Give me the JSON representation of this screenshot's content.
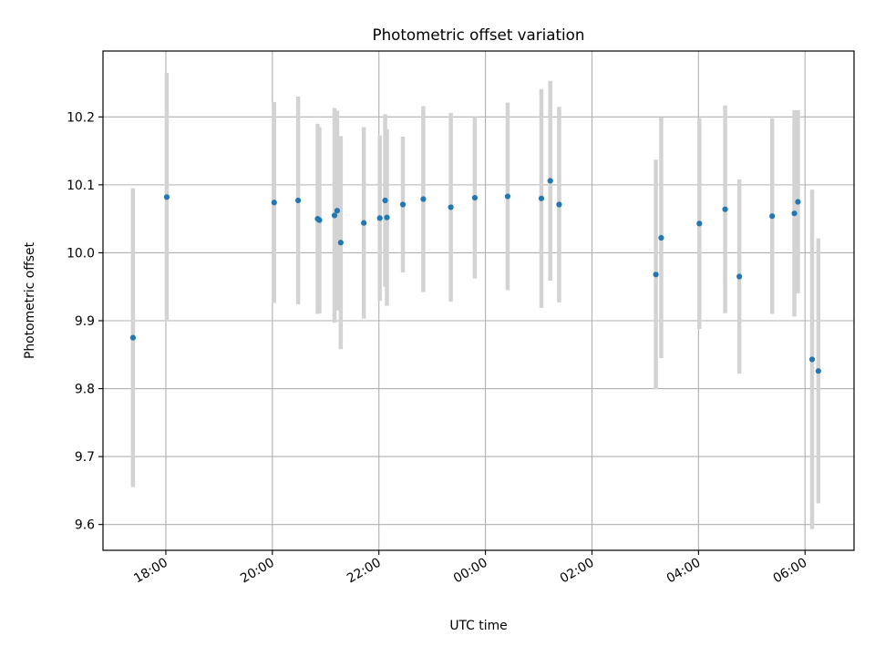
{
  "chart_data": {
    "type": "scatter",
    "title": "Photometric offset variation",
    "xlabel": "UTC time",
    "ylabel": "Photometric offset",
    "grid": true,
    "x_tick_labels": [
      "18:00",
      "20:00",
      "22:00",
      "00:00",
      "02:00",
      "04:00",
      "06:00"
    ],
    "y_tick_labels": [
      "9.6",
      "9.7",
      "9.8",
      "9.9",
      "10.0",
      "10.1",
      "10.2"
    ],
    "x_range_hours": [
      16.82,
      30.92
    ],
    "y_range": [
      9.562,
      10.297
    ],
    "colors": {
      "point": "#1f77b4",
      "errorbar": "#d3d3d3",
      "grid": "#b0b0b0"
    },
    "points": [
      {
        "x": "17:23",
        "y": 9.875,
        "err": 0.22
      },
      {
        "x": "18:01",
        "y": 10.082,
        "err": 0.183
      },
      {
        "x": "20:02",
        "y": 10.074,
        "err": 0.148
      },
      {
        "x": "20:29",
        "y": 10.077,
        "err": 0.153
      },
      {
        "x": "20:51",
        "y": 10.05,
        "err": 0.14
      },
      {
        "x": "20:53",
        "y": 10.048,
        "err": 0.137
      },
      {
        "x": "21:10",
        "y": 10.055,
        "err": 0.158
      },
      {
        "x": "21:13",
        "y": 10.062,
        "err": 0.147
      },
      {
        "x": "21:17",
        "y": 10.015,
        "err": 0.157
      },
      {
        "x": "21:43",
        "y": 10.044,
        "err": 0.141
      },
      {
        "x": "22:01",
        "y": 10.051,
        "err": 0.122
      },
      {
        "x": "22:07",
        "y": 10.077,
        "err": 0.127
      },
      {
        "x": "22:09",
        "y": 10.052,
        "err": 0.13
      },
      {
        "x": "22:27",
        "y": 10.071,
        "err": 0.1
      },
      {
        "x": "22:50",
        "y": 10.079,
        "err": 0.137
      },
      {
        "x": "23:21",
        "y": 10.067,
        "err": 0.139
      },
      {
        "x": "23:48",
        "y": 10.081,
        "err": 0.119
      },
      {
        "x": "00:25",
        "y": 10.083,
        "err": 0.138
      },
      {
        "x": "01:03",
        "y": 10.08,
        "err": 0.161
      },
      {
        "x": "01:13",
        "y": 10.106,
        "err": 0.147
      },
      {
        "x": "01:23",
        "y": 10.071,
        "err": 0.144
      },
      {
        "x": "03:12",
        "y": 9.968,
        "err": 0.169
      },
      {
        "x": "03:18",
        "y": 10.022,
        "err": 0.177
      },
      {
        "x": "04:01",
        "y": 10.043,
        "err": 0.155
      },
      {
        "x": "04:30",
        "y": 10.064,
        "err": 0.153
      },
      {
        "x": "04:46",
        "y": 9.965,
        "err": 0.143
      },
      {
        "x": "05:23",
        "y": 10.054,
        "err": 0.144
      },
      {
        "x": "05:48",
        "y": 10.058,
        "err": 0.152
      },
      {
        "x": "05:52",
        "y": 10.075,
        "err": 0.135
      },
      {
        "x": "06:08",
        "y": 9.843,
        "err": 0.25
      },
      {
        "x": "06:15",
        "y": 9.826,
        "err": 0.195
      }
    ]
  }
}
